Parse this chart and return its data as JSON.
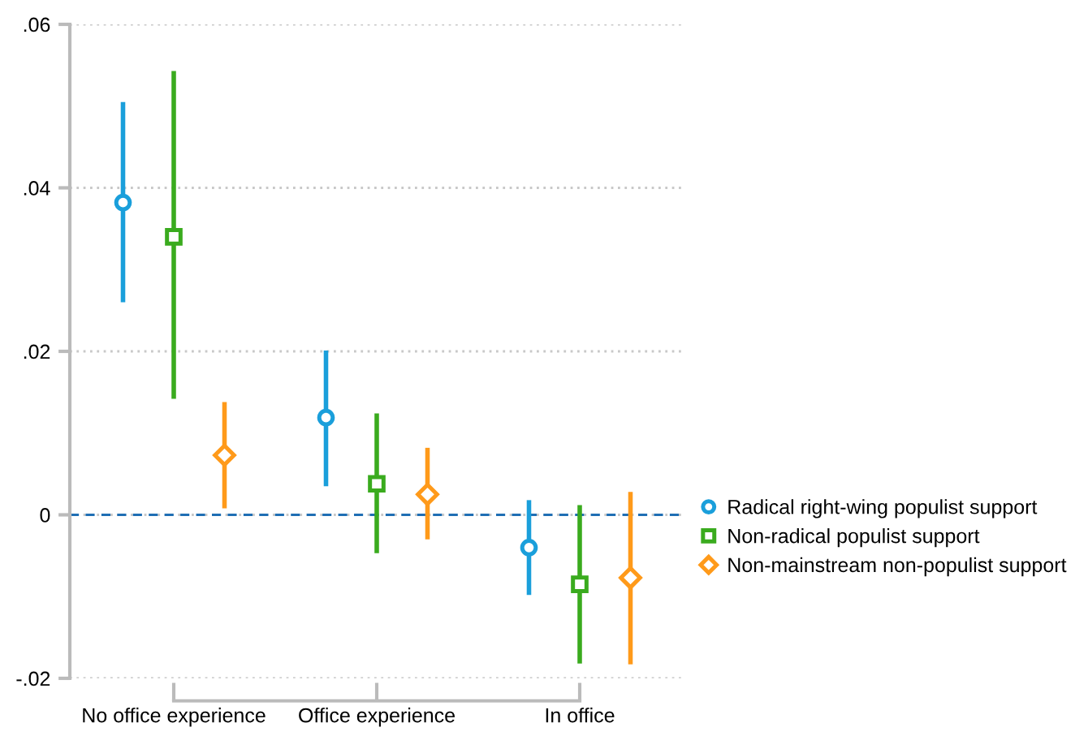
{
  "chart_data": {
    "type": "scatter",
    "categories": [
      "No office experience",
      "Office experience",
      "In office"
    ],
    "series": [
      {
        "name": "Radical right-wing populist support",
        "color": "#1a9fdb",
        "marker": "circle",
        "values": [
          0.0382,
          0.0119,
          -0.004
        ],
        "errors": [
          [
            0.026,
            0.0505
          ],
          [
            0.0035,
            0.0201
          ],
          [
            -0.0098,
            0.0018
          ]
        ]
      },
      {
        "name": "Non-radical populist support",
        "color": "#3aab1e",
        "marker": "square",
        "values": [
          0.034,
          0.0038,
          -0.0085
        ],
        "errors": [
          [
            0.0142,
            0.0543
          ],
          [
            -0.0047,
            0.0124
          ],
          [
            -0.0182,
            0.0012
          ]
        ]
      },
      {
        "name": "Non-mainstream non-populist support",
        "color": "#ff9a1a",
        "marker": "diamond",
        "values": [
          0.0073,
          0.0025,
          -0.0077
        ],
        "errors": [
          [
            0.0008,
            0.0138
          ],
          [
            -0.003,
            0.0082
          ],
          [
            -0.0183,
            0.0028
          ]
        ]
      }
    ],
    "ylim": [
      -0.02,
      0.06
    ],
    "yticks": [
      {
        "value": -0.02,
        "label": "-.02"
      },
      {
        "value": 0,
        "label": "0"
      },
      {
        "value": 0.02,
        "label": ".02"
      },
      {
        "value": 0.04,
        "label": ".04"
      },
      {
        "value": 0.06,
        "label": ".06"
      }
    ],
    "ref_lines": [
      {
        "axis": "y",
        "value": 0,
        "color": "#1f6fb4",
        "line_style": "dashed"
      }
    ],
    "grid": "y",
    "legend": "right"
  }
}
